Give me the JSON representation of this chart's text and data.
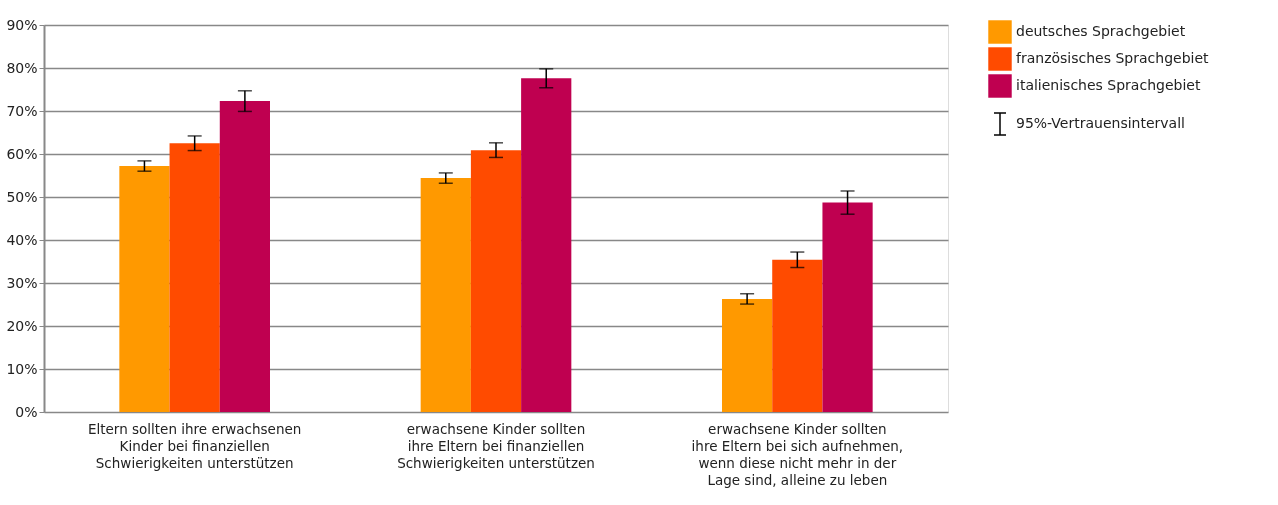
{
  "chart_data": {
    "type": "bar",
    "categories": [
      "Eltern sollten ihre erwachsenen\nKinder bei finanziellen\nSchwierigkeiten unterstützen",
      "erwachsene Kinder sollten\nihre Eltern bei finanziellen\nSchwierigkeiten unterstützen",
      "erwachsene Kinder sollten\nihre Eltern bei sich aufnehmen,\nwenn diese nicht mehr in der\nLage sind, alleine zu leben"
    ],
    "series": [
      {
        "name": "deutsches Sprachgebiet",
        "color": "#ff9900",
        "values": [
          57.2,
          54.4,
          26.3
        ],
        "errors": [
          1.2,
          1.2,
          1.2
        ]
      },
      {
        "name": "französisches Sprachgebiet",
        "color": "#ff4b00",
        "values": [
          62.5,
          60.9,
          35.4
        ],
        "errors": [
          1.7,
          1.7,
          1.8
        ]
      },
      {
        "name": "italienisches Sprachgebiet",
        "color": "#bf0050",
        "values": [
          72.3,
          77.6,
          48.7
        ],
        "errors": [
          2.4,
          2.2,
          2.7
        ]
      }
    ],
    "ylim": [
      0,
      90
    ],
    "yticks": [
      {
        "value": 0,
        "label": "0%"
      },
      {
        "value": 10,
        "label": "10%"
      },
      {
        "value": 20,
        "label": "20%"
      },
      {
        "value": 30,
        "label": "30%"
      },
      {
        "value": 40,
        "label": "40%"
      },
      {
        "value": 50,
        "label": "50%"
      },
      {
        "value": 60,
        "label": "60%"
      },
      {
        "value": 70,
        "label": "70%"
      },
      {
        "value": 80,
        "label": "80%"
      },
      {
        "value": 90,
        "label": "90%"
      }
    ],
    "grid": "y",
    "legend": "top right",
    "annotations": [
      "95%-Vertrauensintervall"
    ]
  }
}
